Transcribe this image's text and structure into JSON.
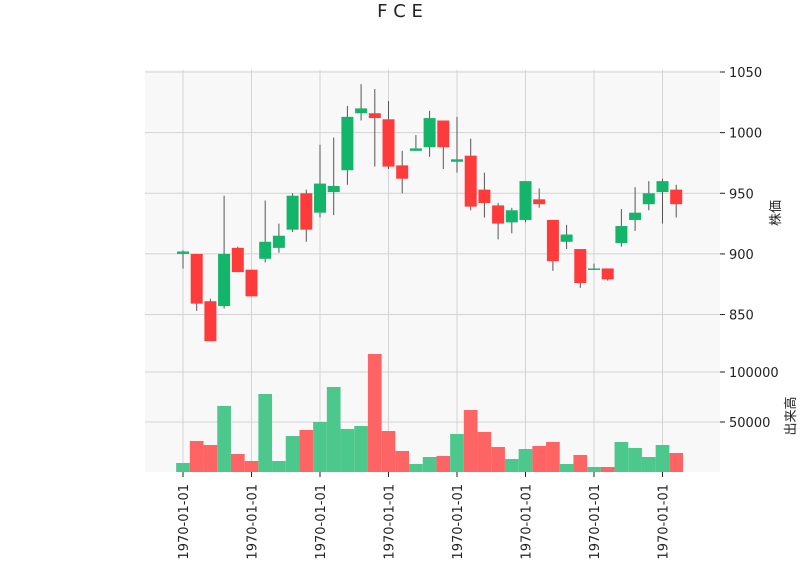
{
  "chart_data": {
    "type": "candlestick",
    "title": "F C E",
    "price_axis_label": "株価",
    "volume_axis_label": "出来高",
    "price_ylim": [
      815,
      1050
    ],
    "price_ticks": [
      850,
      900,
      950,
      1000,
      1050
    ],
    "volume_ylim": [
      0,
      115000
    ],
    "volume_ticks": [
      50000,
      100000
    ],
    "x_tick_labels": [
      "1970-01-01",
      "1970-01-01",
      "1970-01-01",
      "1970-01-01",
      "1970-01-01",
      "1970-01-01",
      "1970-01-01",
      "1970-01-01"
    ],
    "x_tick_indices": [
      0,
      5,
      10,
      15,
      20,
      25,
      30,
      35
    ],
    "up_color": "#13b56a",
    "down_color": "#ff3a3a",
    "up_volume_color": "#4cc88c",
    "down_volume_color": "#ff6464",
    "wick_color": "#555555",
    "grid": true,
    "candles": [
      {
        "open": 900,
        "high": 903,
        "low": 888,
        "close": 902,
        "volume": 9000
      },
      {
        "open": 900,
        "high": 900,
        "low": 853,
        "close": 859,
        "volume": 31000
      },
      {
        "open": 861,
        "high": 863,
        "low": 828,
        "close": 828,
        "volume": 27000
      },
      {
        "open": 857,
        "high": 948,
        "low": 855,
        "close": 900,
        "volume": 66000
      },
      {
        "open": 905,
        "high": 906,
        "low": 885,
        "close": 885,
        "volume": 18000
      },
      {
        "open": 887,
        "high": 887,
        "low": 865,
        "close": 865,
        "volume": 11000
      },
      {
        "open": 896,
        "high": 944,
        "low": 893,
        "close": 910,
        "volume": 78000
      },
      {
        "open": 905,
        "high": 925,
        "low": 901,
        "close": 915,
        "volume": 11000
      },
      {
        "open": 920,
        "high": 950,
        "low": 918,
        "close": 948,
        "volume": 36000
      },
      {
        "open": 950,
        "high": 953,
        "low": 910,
        "close": 920,
        "volume": 42000
      },
      {
        "open": 934,
        "high": 990,
        "low": 930,
        "close": 958,
        "volume": 50000
      },
      {
        "open": 951,
        "high": 996,
        "low": 932,
        "close": 956,
        "volume": 85000
      },
      {
        "open": 969,
        "high": 1022,
        "low": 957,
        "close": 1013,
        "volume": 43000
      },
      {
        "open": 1016,
        "high": 1040,
        "low": 1010,
        "close": 1020,
        "volume": 46000
      },
      {
        "open": 1016,
        "high": 1036,
        "low": 972,
        "close": 1012,
        "volume": 118000
      },
      {
        "open": 1011,
        "high": 1026,
        "low": 970,
        "close": 972,
        "volume": 41000
      },
      {
        "open": 973,
        "high": 985,
        "low": 950,
        "close": 962,
        "volume": 21000
      },
      {
        "open": 985,
        "high": 998,
        "low": 985,
        "close": 987,
        "volume": 8000
      },
      {
        "open": 988,
        "high": 1018,
        "low": 980,
        "close": 1012,
        "volume": 15000
      },
      {
        "open": 1010,
        "high": 1010,
        "low": 970,
        "close": 988,
        "volume": 16000
      },
      {
        "open": 976,
        "high": 1013,
        "low": 967,
        "close": 978,
        "volume": 38000
      },
      {
        "open": 981,
        "high": 995,
        "low": 936,
        "close": 939,
        "volume": 62000
      },
      {
        "open": 953,
        "high": 967,
        "low": 930,
        "close": 942,
        "volume": 40000
      },
      {
        "open": 940,
        "high": 942,
        "low": 912,
        "close": 925,
        "volume": 25000
      },
      {
        "open": 926,
        "high": 938,
        "low": 917,
        "close": 936,
        "volume": 13000
      },
      {
        "open": 928,
        "high": 960,
        "low": 926,
        "close": 960,
        "volume": 23000
      },
      {
        "open": 945,
        "high": 954,
        "low": 938,
        "close": 941,
        "volume": 26000
      },
      {
        "open": 928,
        "high": 928,
        "low": 886,
        "close": 894,
        "volume": 30000
      },
      {
        "open": 910,
        "high": 924,
        "low": 904,
        "close": 916,
        "volume": 8000
      },
      {
        "open": 904,
        "high": 904,
        "low": 872,
        "close": 876,
        "volume": 17000
      },
      {
        "open": 888,
        "high": 892,
        "low": 888,
        "close": 888,
        "volume": 5000
      },
      {
        "open": 888,
        "high": 888,
        "low": 878,
        "close": 879,
        "volume": 5000
      },
      {
        "open": 909,
        "high": 937,
        "low": 906,
        "close": 923,
        "volume": 30000
      },
      {
        "open": 928,
        "high": 955,
        "low": 919,
        "close": 934,
        "volume": 24000
      },
      {
        "open": 941,
        "high": 960,
        "low": 936,
        "close": 950,
        "volume": 15000
      },
      {
        "open": 951,
        "high": 962,
        "low": 925,
        "close": 960,
        "volume": 27000
      },
      {
        "open": 953,
        "high": 957,
        "low": 930,
        "close": 941,
        "volume": 19000
      }
    ]
  }
}
